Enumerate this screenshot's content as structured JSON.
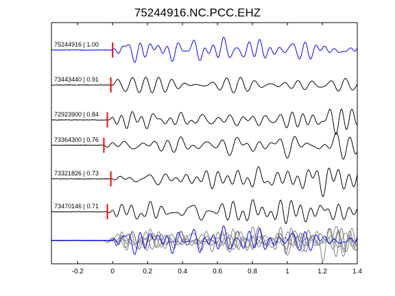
{
  "chart_data": {
    "type": "line",
    "title": "75244916.NC.PCC.EHZ",
    "xlim": [
      -0.35,
      1.4
    ],
    "xticks": [
      -0.2,
      0,
      0.2,
      0.4,
      0.6,
      0.8,
      1,
      1.2,
      1.4
    ],
    "xtick_labels": [
      "-0.2",
      "0",
      "0.2",
      "0.4",
      "0.6",
      "0.8",
      "1",
      "1.2",
      "1.4"
    ],
    "xlabel": "",
    "ylabel": "",
    "grid": false,
    "colors": {
      "reference": "#0000ff",
      "trace": "#000000",
      "stack": "#808080",
      "pick": "#ff0000"
    },
    "series": [
      {
        "name": "75244916 | 1.00",
        "event_id": "75244916",
        "correlation": 1.0,
        "pick_time": 0.0,
        "color": "#0000ff",
        "seed": 1
      },
      {
        "name": "73443440 | 0.91",
        "event_id": "73443440",
        "correlation": 0.91,
        "pick_time": -0.01,
        "color": "#000000",
        "seed": 2
      },
      {
        "name": "72923900 | 0.84",
        "event_id": "72923900",
        "correlation": 0.84,
        "pick_time": -0.03,
        "color": "#000000",
        "seed": 3
      },
      {
        "name": "73364300 | 0.76",
        "event_id": "73364300",
        "correlation": 0.76,
        "pick_time": -0.05,
        "color": "#000000",
        "seed": 4
      },
      {
        "name": "73321826 | 0.73",
        "event_id": "73321826",
        "correlation": 0.73,
        "pick_time": -0.01,
        "color": "#000000",
        "seed": 5
      },
      {
        "name": "73470146 | 0.71",
        "event_id": "73470146",
        "correlation": 0.71,
        "pick_time": -0.03,
        "color": "#000000",
        "seed": 6
      }
    ],
    "overlay": {
      "description": "all traces overlaid",
      "reference_color": "#0000ff",
      "others_color": "#808080"
    }
  }
}
